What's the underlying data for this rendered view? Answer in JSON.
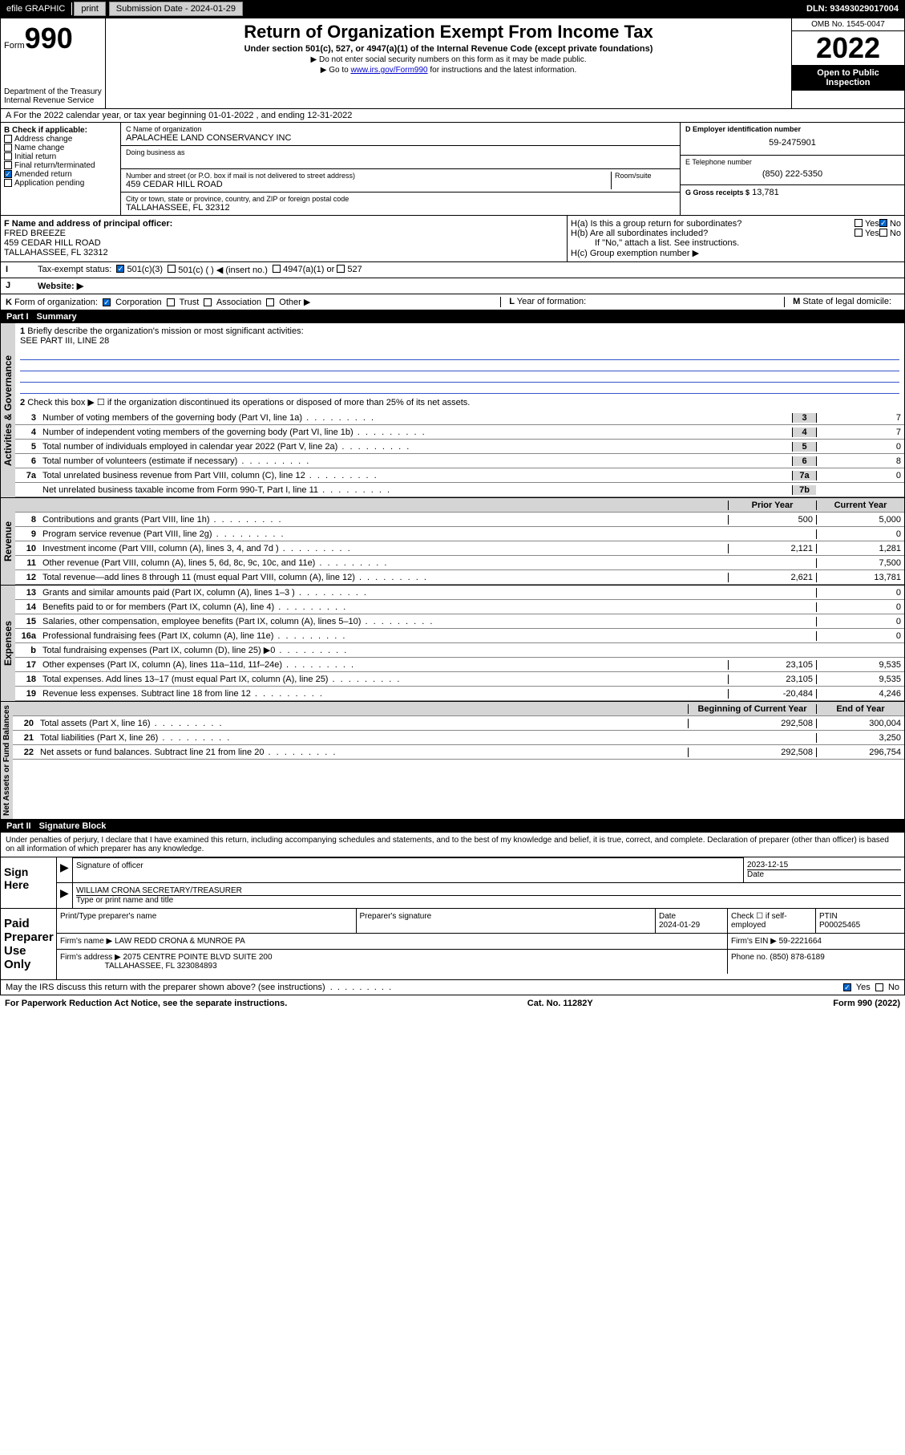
{
  "header_bar": {
    "efile": "efile GRAPHIC",
    "print": "print",
    "sub_lbl": "Submission Date - 2024-01-29",
    "dln": "DLN: 93493029017004"
  },
  "top": {
    "form_prefix": "Form",
    "form_num": "990",
    "dept": "Department of the Treasury",
    "irs": "Internal Revenue Service",
    "title": "Return of Organization Exempt From Income Tax",
    "subtitle": "Under section 501(c), 527, or 4947(a)(1) of the Internal Revenue Code (except private foundations)",
    "note1": "▶ Do not enter social security numbers on this form as it may be made public.",
    "note2_pre": "▶ Go to ",
    "note2_link": "www.irs.gov/Form990",
    "note2_post": " for instructions and the latest information.",
    "omb": "OMB No. 1545-0047",
    "year": "2022",
    "open": "Open to Public Inspection"
  },
  "period": "A For the 2022 calendar year, or tax year beginning 01-01-2022  , and ending 12-31-2022",
  "box_b": {
    "title": "B Check if applicable:",
    "items": [
      "Address change",
      "Name change",
      "Initial return",
      "Final return/terminated",
      "Amended return",
      "Application pending"
    ],
    "checked_idx": 4
  },
  "box_c": {
    "lbl": "C Name of organization",
    "name": "APALACHEE LAND CONSERVANCY INC",
    "dba_lbl": "Doing business as",
    "addr_lbl": "Number and street (or P.O. box if mail is not delivered to street address)",
    "room_lbl": "Room/suite",
    "addr": "459 CEDAR HILL ROAD",
    "city_lbl": "City or town, state or province, country, and ZIP or foreign postal code",
    "city": "TALLAHASSEE, FL  32312"
  },
  "box_d": {
    "lbl": "D Employer identification number",
    "val": "59-2475901"
  },
  "box_e": {
    "lbl": "E Telephone number",
    "val": "(850) 222-5350"
  },
  "box_g": {
    "lbl": "G Gross receipts $",
    "val": "13,781"
  },
  "box_f": {
    "lbl": "F  Name and address of principal officer:",
    "name": "FRED BREEZE",
    "addr1": "459 CEDAR HILL ROAD",
    "addr2": "TALLAHASSEE, FL  32312"
  },
  "box_h": {
    "ha": "H(a)  Is this a group return for subordinates?",
    "hb": "H(b)  Are all subordinates included?",
    "hb_note": "If \"No,\" attach a list. See instructions.",
    "hc": "H(c)  Group exemption number ▶",
    "yes": "Yes",
    "no": "No"
  },
  "row_i": {
    "lbl": "I",
    "txt": "Tax-exempt status:",
    "opts": [
      "501(c)(3)",
      "501(c) (  ) ◀ (insert no.)",
      "4947(a)(1) or",
      "527"
    ]
  },
  "row_j": {
    "lbl": "J",
    "txt": "Website: ▶"
  },
  "row_k": {
    "lbl": "K",
    "txt": "Form of organization:",
    "opts": [
      "Corporation",
      "Trust",
      "Association",
      "Other ▶"
    ],
    "checked_idx": 0
  },
  "row_l": {
    "lbl": "L",
    "txt": "Year of formation:"
  },
  "row_m": {
    "lbl": "M",
    "txt": "State of legal domicile:"
  },
  "part1": {
    "num": "Part I",
    "title": "Summary"
  },
  "summary_desc": {
    "num": "1",
    "txt": "Briefly describe the organization's mission or most significant activities:",
    "val": "SEE PART III, LINE 28"
  },
  "summary_2": "Check this box ▶ ☐  if the organization discontinued its operations or disposed of more than 25% of its net assets.",
  "sections": {
    "gov_label": "Activities & Governance",
    "rev_label": "Revenue",
    "exp_label": "Expenses",
    "net_label": "Net Assets or Fund Balances"
  },
  "gov_lines": [
    {
      "n": "3",
      "t": "Number of voting members of the governing body (Part VI, line 1a)",
      "bn": "3",
      "v": "7"
    },
    {
      "n": "4",
      "t": "Number of independent voting members of the governing body (Part VI, line 1b)",
      "bn": "4",
      "v": "7"
    },
    {
      "n": "5",
      "t": "Total number of individuals employed in calendar year 2022 (Part V, line 2a)",
      "bn": "5",
      "v": "0"
    },
    {
      "n": "6",
      "t": "Total number of volunteers (estimate if necessary)",
      "bn": "6",
      "v": "8"
    },
    {
      "n": "7a",
      "t": "Total unrelated business revenue from Part VIII, column (C), line 12",
      "bn": "7a",
      "v": "0"
    },
    {
      "n": "",
      "t": "Net unrelated business taxable income from Form 990-T, Part I, line 11",
      "bn": "7b",
      "v": ""
    }
  ],
  "col_hdrs": {
    "prior": "Prior Year",
    "current": "Current Year",
    "begin": "Beginning of Current Year",
    "end": "End of Year"
  },
  "rev_lines": [
    {
      "n": "8",
      "t": "Contributions and grants (Part VIII, line 1h)",
      "p": "500",
      "c": "5,000"
    },
    {
      "n": "9",
      "t": "Program service revenue (Part VIII, line 2g)",
      "p": "",
      "c": "0"
    },
    {
      "n": "10",
      "t": "Investment income (Part VIII, column (A), lines 3, 4, and 7d )",
      "p": "2,121",
      "c": "1,281"
    },
    {
      "n": "11",
      "t": "Other revenue (Part VIII, column (A), lines 5, 6d, 8c, 9c, 10c, and 11e)",
      "p": "",
      "c": "7,500"
    },
    {
      "n": "12",
      "t": "Total revenue—add lines 8 through 11 (must equal Part VIII, column (A), line 12)",
      "p": "2,621",
      "c": "13,781"
    }
  ],
  "exp_lines": [
    {
      "n": "13",
      "t": "Grants and similar amounts paid (Part IX, column (A), lines 1–3 )",
      "p": "",
      "c": "0"
    },
    {
      "n": "14",
      "t": "Benefits paid to or for members (Part IX, column (A), line 4)",
      "p": "",
      "c": "0"
    },
    {
      "n": "15",
      "t": "Salaries, other compensation, employee benefits (Part IX, column (A), lines 5–10)",
      "p": "",
      "c": "0"
    },
    {
      "n": "16a",
      "t": "Professional fundraising fees (Part IX, column (A), line 11e)",
      "p": "",
      "c": "0"
    },
    {
      "n": "b",
      "t": "Total fundraising expenses (Part IX, column (D), line 25) ▶0",
      "p": "GRAY",
      "c": "GRAY"
    },
    {
      "n": "17",
      "t": "Other expenses (Part IX, column (A), lines 11a–11d, 11f–24e)",
      "p": "23,105",
      "c": "9,535"
    },
    {
      "n": "18",
      "t": "Total expenses. Add lines 13–17 (must equal Part IX, column (A), line 25)",
      "p": "23,105",
      "c": "9,535"
    },
    {
      "n": "19",
      "t": "Revenue less expenses. Subtract line 18 from line 12",
      "p": "-20,484",
      "c": "4,246"
    }
  ],
  "net_lines": [
    {
      "n": "20",
      "t": "Total assets (Part X, line 16)",
      "p": "292,508",
      "c": "300,004"
    },
    {
      "n": "21",
      "t": "Total liabilities (Part X, line 26)",
      "p": "",
      "c": "3,250"
    },
    {
      "n": "22",
      "t": "Net assets or fund balances. Subtract line 21 from line 20",
      "p": "292,508",
      "c": "296,754"
    }
  ],
  "part2": {
    "num": "Part II",
    "title": "Signature Block"
  },
  "penalties": "Under penalties of perjury, I declare that I have examined this return, including accompanying schedules and statements, and to the best of my knowledge and belief, it is true, correct, and complete. Declaration of preparer (other than officer) is based on all information of which preparer has any knowledge.",
  "sign": {
    "lbl": "Sign Here",
    "sig_lbl": "Signature of officer",
    "date_lbl": "Date",
    "date": "2023-12-15",
    "name": "WILLIAM CRONA  SECRETARY/TREASURER",
    "name_lbl": "Type or print name and title"
  },
  "paid": {
    "lbl": "Paid Preparer Use Only",
    "prep_name_lbl": "Print/Type preparer's name",
    "prep_sig_lbl": "Preparer's signature",
    "date_lbl": "Date",
    "date": "2024-01-29",
    "check_lbl": "Check ☐ if self-employed",
    "ptin_lbl": "PTIN",
    "ptin": "P00025465",
    "firm_lbl": "Firm's name   ▶",
    "firm": "LAW REDD CRONA & MUNROE PA",
    "ein_lbl": "Firm's EIN ▶",
    "ein": "59-2221664",
    "addr_lbl": "Firm's address ▶",
    "addr": "2075 CENTRE POINTE BLVD SUITE 200",
    "addr2": "TALLAHASSEE, FL  323084893",
    "phone_lbl": "Phone no.",
    "phone": "(850) 878-6189"
  },
  "discuss": {
    "txt": "May the IRS discuss this return with the preparer shown above? (see instructions)",
    "yes": "Yes",
    "no": "No"
  },
  "footer": {
    "left": "For Paperwork Reduction Act Notice, see the separate instructions.",
    "mid": "Cat. No. 11282Y",
    "right": "Form 990 (2022)"
  }
}
